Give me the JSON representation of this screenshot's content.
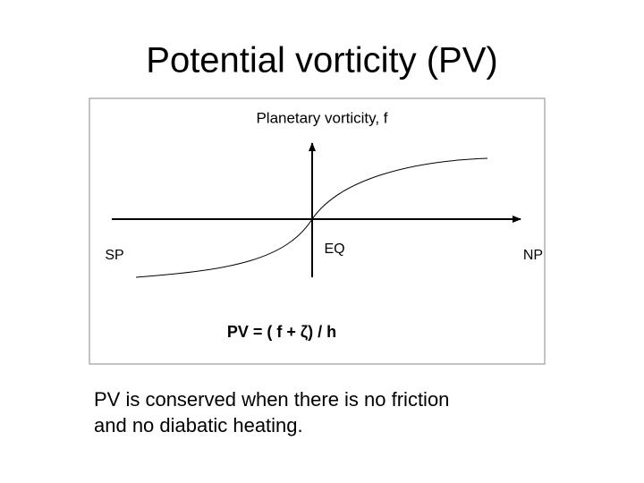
{
  "header": {
    "title": "Potential vorticity (PV)"
  },
  "diagram": {
    "y_axis_label": "Planetary vorticity, f",
    "left_label": "SP",
    "center_label": "EQ",
    "right_label": "NP",
    "formula": "PV = ( f + ζ) / h"
  },
  "caption": {
    "lines": [
      "PV is conserved when there is no friction",
      "and no diabatic heating."
    ]
  }
}
